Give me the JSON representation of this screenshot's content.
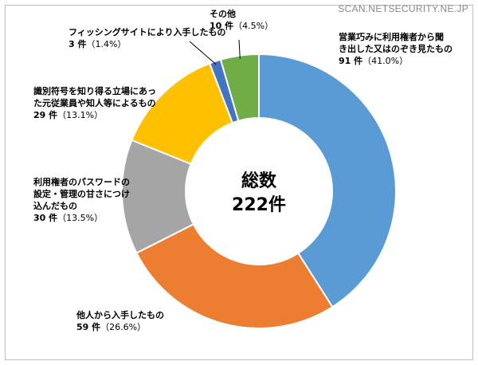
{
  "watermark": "SCAN.NETSECURITY.NE.JP",
  "chart_data": {
    "type": "pie",
    "center_title": "総数",
    "center_value": "222件",
    "slices": [
      {
        "lines": [
          "営業巧みに利用権者から聞",
          "き出した又はのぞき見たもの"
        ],
        "count_text": "91 件",
        "pct_text": "（41.0%）",
        "value": 91,
        "percent": 41.0,
        "color": "#5b9bd5"
      },
      {
        "lines": [
          "他人から入手したもの"
        ],
        "count_text": "59 件",
        "pct_text": "（26.6%）",
        "value": 59,
        "percent": 26.6,
        "color": "#ed7d31"
      },
      {
        "lines": [
          "利用権者のパスワードの",
          "設定・管理の甘さにつけ",
          "込んだもの"
        ],
        "count_text": "30 件",
        "pct_text": "（13.5%）",
        "value": 30,
        "percent": 13.5,
        "color": "#a5a5a5"
      },
      {
        "lines": [
          "識別符号を知り得る立場にあっ",
          "た元従業員や知人等によるもの"
        ],
        "count_text": "29 件",
        "pct_text": "（13.1%）",
        "value": 29,
        "percent": 13.1,
        "color": "#ffc000"
      },
      {
        "lines": [
          "フィッシングサイトにより入手したもの"
        ],
        "count_text": "3 件",
        "pct_text": "（1.4%）",
        "value": 3,
        "percent": 1.4,
        "color": "#4472c4"
      },
      {
        "lines": [
          "その他"
        ],
        "count_text": "10 件",
        "pct_text": "（4.5%）",
        "value": 10,
        "percent": 4.5,
        "color": "#70ad47"
      }
    ]
  }
}
